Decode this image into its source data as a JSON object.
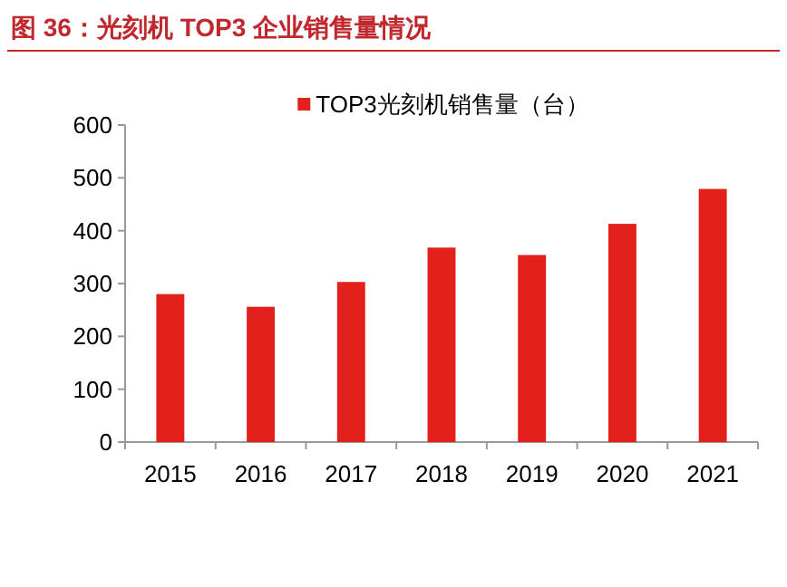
{
  "chart_data": {
    "type": "bar",
    "title": "图 36：光刻机 TOP3 企业销售量情况",
    "categories": [
      "2015",
      "2016",
      "2017",
      "2018",
      "2019",
      "2020",
      "2021"
    ],
    "series": [
      {
        "name": "TOP3光刻机销售量（台）",
        "color": "#e2211c",
        "values": [
          280,
          256,
          303,
          368,
          354,
          413,
          479
        ]
      }
    ],
    "ylim": [
      0,
      600
    ],
    "yticks": [
      0,
      100,
      200,
      300,
      400,
      500,
      600
    ],
    "grid": false,
    "legend": "top"
  }
}
